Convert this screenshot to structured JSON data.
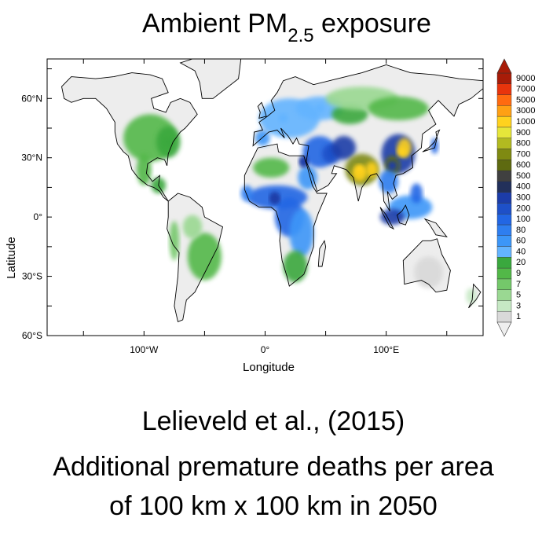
{
  "title": {
    "prefix": "Ambient PM",
    "subscript": "2.5",
    "suffix": " exposure"
  },
  "map": {
    "x_axis": {
      "label": "Longitude",
      "ticks": [
        {
          "lon": -100,
          "label": "100°W"
        },
        {
          "lon": 0,
          "label": "0°"
        },
        {
          "lon": 100,
          "label": "100°E"
        }
      ]
    },
    "y_axis": {
      "label": "Latitude",
      "ticks": [
        {
          "lat": 60,
          "label": "60°N"
        },
        {
          "lat": 30,
          "label": "30°N"
        },
        {
          "lat": 0,
          "label": "0°"
        },
        {
          "lat": -30,
          "label": "30°S"
        },
        {
          "lat": -60,
          "label": "60°S"
        }
      ]
    },
    "legend": {
      "levels": [
        "1",
        "3",
        "5",
        "7",
        "9",
        "20",
        "40",
        "60",
        "80",
        "100",
        "200",
        "300",
        "400",
        "500",
        "600",
        "700",
        "800",
        "900",
        "1000",
        "3000",
        "5000",
        "7000",
        "9000"
      ],
      "colors": [
        "#d9d9d9",
        "#c6e8c4",
        "#9ad892",
        "#74c86a",
        "#52b848",
        "#3aa83e",
        "#64b4ff",
        "#3c96f8",
        "#2e7ef0",
        "#2266e4",
        "#1e50c8",
        "#1c3ca8",
        "#22305a",
        "#404040",
        "#5e6a10",
        "#7f8a12",
        "#b2ba20",
        "#e6e63a",
        "#ffd21e",
        "#ffa014",
        "#ff6a10",
        "#e8340c",
        "#a81c08"
      ]
    },
    "hotspots": [
      {
        "lon": 78,
        "lat": 24,
        "value": 1000
      },
      {
        "lon": 113,
        "lat": 33,
        "value": 1000
      },
      {
        "lon": 105,
        "lat": 26,
        "value": 300
      },
      {
        "lon": 8,
        "lat": 9,
        "value": 300
      },
      {
        "lon": 32,
        "lat": 28,
        "value": 300
      },
      {
        "lon": -80,
        "lat": 38,
        "value": 20
      },
      {
        "lon": 15,
        "lat": 50,
        "value": 40
      },
      {
        "lon": 45,
        "lat": 55,
        "value": 40
      }
    ]
  },
  "citation": "Lelieveld et al., (2015)",
  "description_line1": "Additional premature deaths per area",
  "description_line2": "of 100 km x 100 km in 2050"
}
